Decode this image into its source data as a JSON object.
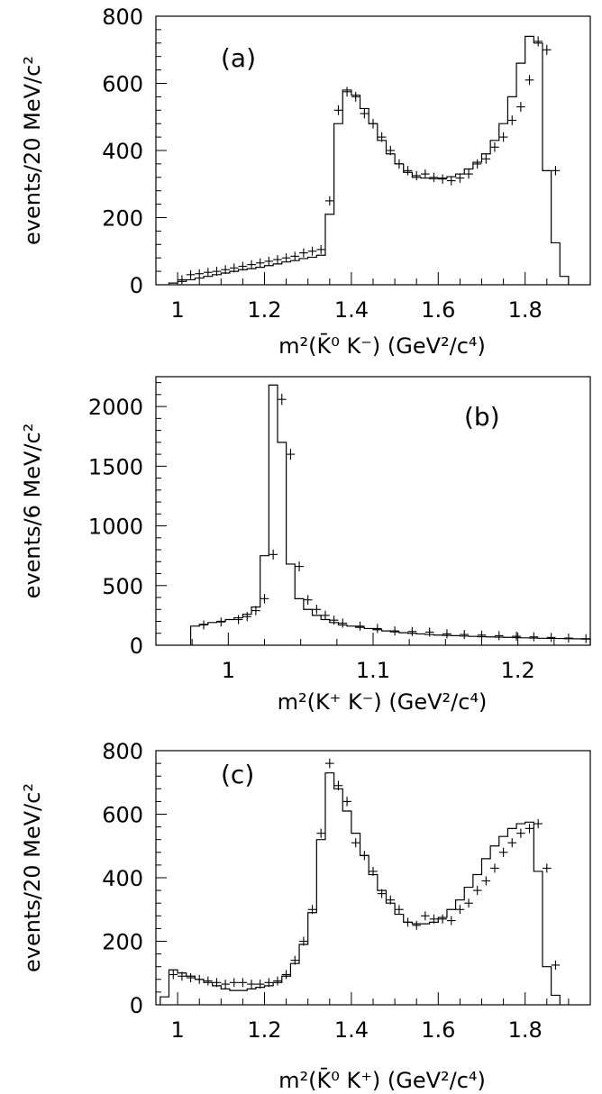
{
  "chart_data": [
    {
      "type": "histogram",
      "panel_label": "(a)",
      "ylabel": "events/20 MeV/c²",
      "xlabel": "m²(K̄⁰ K⁻) (GeV²/c⁴)",
      "xlim": [
        0.95,
        1.95
      ],
      "ylim": [
        0,
        800
      ],
      "xticks": [
        1,
        1.2,
        1.4,
        1.6,
        1.8
      ],
      "xtick_labels": [
        "1",
        "1.2",
        "1.4",
        "1.6",
        "1.8"
      ],
      "yticks": [
        0,
        200,
        400,
        600,
        800
      ],
      "ytick_labels": [
        "0",
        "200",
        "400",
        "600",
        "800"
      ],
      "bin_edges": [
        0.98,
        1.0,
        1.02,
        1.04,
        1.06,
        1.08,
        1.1,
        1.12,
        1.14,
        1.16,
        1.18,
        1.2,
        1.22,
        1.24,
        1.26,
        1.28,
        1.3,
        1.32,
        1.34,
        1.36,
        1.38,
        1.4,
        1.42,
        1.44,
        1.46,
        1.48,
        1.5,
        1.52,
        1.54,
        1.56,
        1.58,
        1.6,
        1.62,
        1.64,
        1.66,
        1.68,
        1.7,
        1.72,
        1.74,
        1.76,
        1.78,
        1.8,
        1.82,
        1.84,
        1.86,
        1.88,
        1.9
      ],
      "series": [
        {
          "kind": "model-histogram",
          "values": [
            5,
            10,
            15,
            20,
            25,
            30,
            35,
            40,
            45,
            48,
            52,
            57,
            62,
            68,
            72,
            78,
            82,
            88,
            210,
            480,
            580,
            565,
            525,
            480,
            430,
            390,
            360,
            335,
            320,
            318,
            316,
            318,
            322,
            330,
            345,
            365,
            390,
            430,
            480,
            560,
            660,
            740,
            720,
            340,
            125,
            25
          ]
        },
        {
          "kind": "data-points",
          "x": [
            1.01,
            1.03,
            1.05,
            1.07,
            1.09,
            1.11,
            1.13,
            1.15,
            1.17,
            1.19,
            1.21,
            1.23,
            1.25,
            1.27,
            1.29,
            1.31,
            1.33,
            1.35,
            1.37,
            1.39,
            1.41,
            1.43,
            1.45,
            1.47,
            1.49,
            1.51,
            1.53,
            1.55,
            1.57,
            1.59,
            1.61,
            1.63,
            1.65,
            1.67,
            1.69,
            1.71,
            1.73,
            1.75,
            1.77,
            1.79,
            1.81,
            1.83,
            1.85,
            1.87
          ],
          "y": [
            15,
            30,
            33,
            37,
            40,
            45,
            50,
            55,
            60,
            65,
            70,
            75,
            80,
            85,
            95,
            100,
            105,
            250,
            520,
            575,
            560,
            510,
            480,
            440,
            400,
            360,
            340,
            325,
            330,
            320,
            315,
            310,
            318,
            330,
            360,
            375,
            410,
            440,
            490,
            530,
            610,
            725,
            700,
            340
          ]
        }
      ]
    },
    {
      "type": "histogram",
      "panel_label": "(b)",
      "ylabel": "events/6 MeV/c²",
      "xlabel": "m²(K⁺ K⁻) (GeV²/c⁴)",
      "xlim": [
        0.95,
        1.25
      ],
      "ylim": [
        0,
        2250
      ],
      "xticks": [
        1.0,
        1.1,
        1.2
      ],
      "xtick_labels": [
        "1",
        "1.1",
        "1.2"
      ],
      "yticks": [
        0,
        500,
        1000,
        1500,
        2000
      ],
      "ytick_labels": [
        "0",
        "500",
        "1000",
        "1500",
        "2000"
      ],
      "bin_edges": [
        0.974,
        0.98,
        0.986,
        0.992,
        0.998,
        1.004,
        1.01,
        1.016,
        1.022,
        1.028,
        1.034,
        1.04,
        1.046,
        1.052,
        1.058,
        1.064,
        1.07,
        1.076,
        1.082,
        1.088,
        1.094,
        1.1,
        1.106,
        1.112,
        1.118,
        1.124,
        1.13,
        1.136,
        1.142,
        1.148,
        1.154,
        1.16,
        1.166,
        1.172,
        1.178,
        1.184,
        1.19,
        1.196,
        1.202,
        1.208,
        1.214,
        1.22,
        1.226,
        1.232,
        1.238,
        1.244,
        1.25
      ],
      "series": [
        {
          "kind": "model-histogram",
          "values": [
            160,
            175,
            190,
            200,
            215,
            230,
            260,
            320,
            750,
            2180,
            1700,
            680,
            390,
            300,
            250,
            215,
            190,
            170,
            160,
            150,
            140,
            130,
            120,
            112,
            105,
            100,
            95,
            90,
            85,
            82,
            80,
            77,
            74,
            72,
            70,
            68,
            66,
            64,
            62,
            60,
            58,
            57,
            56,
            55,
            54,
            52
          ]
        },
        {
          "kind": "data-points",
          "x": [
            0.983,
            0.995,
            1.007,
            1.013,
            1.019,
            1.025,
            1.031,
            1.037,
            1.043,
            1.049,
            1.055,
            1.061,
            1.067,
            1.073,
            1.079,
            1.091,
            1.103,
            1.115,
            1.127,
            1.139,
            1.151,
            1.163,
            1.175,
            1.187,
            1.199,
            1.211,
            1.223,
            1.235,
            1.247
          ],
          "y": [
            170,
            195,
            215,
            240,
            290,
            390,
            760,
            2060,
            1600,
            660,
            380,
            300,
            250,
            210,
            185,
            160,
            140,
            120,
            115,
            110,
            95,
            90,
            85,
            80,
            75,
            70,
            65,
            60,
            55
          ]
        }
      ]
    },
    {
      "type": "histogram",
      "panel_label": "(c)",
      "ylabel": "events/20 MeV/c²",
      "xlabel": "m²(K̄⁰ K⁺) (GeV²/c⁴)",
      "xlim": [
        0.95,
        1.95
      ],
      "ylim": [
        0,
        800
      ],
      "xticks": [
        1,
        1.2,
        1.4,
        1.6,
        1.8
      ],
      "xtick_labels": [
        "1",
        "1.2",
        "1.4",
        "1.6",
        "1.8"
      ],
      "yticks": [
        0,
        200,
        400,
        600,
        800
      ],
      "ytick_labels": [
        "0",
        "200",
        "400",
        "600",
        "800"
      ],
      "bin_edges": [
        0.96,
        0.98,
        1.0,
        1.02,
        1.04,
        1.06,
        1.08,
        1.1,
        1.12,
        1.14,
        1.16,
        1.18,
        1.2,
        1.22,
        1.24,
        1.26,
        1.28,
        1.3,
        1.32,
        1.34,
        1.36,
        1.38,
        1.4,
        1.42,
        1.44,
        1.46,
        1.48,
        1.5,
        1.52,
        1.54,
        1.56,
        1.58,
        1.6,
        1.62,
        1.64,
        1.66,
        1.68,
        1.7,
        1.72,
        1.74,
        1.76,
        1.78,
        1.8,
        1.82,
        1.84,
        1.86,
        1.88
      ],
      "series": [
        {
          "kind": "model-histogram",
          "values": [
            25,
            110,
            100,
            90,
            80,
            70,
            60,
            50,
            45,
            45,
            50,
            55,
            60,
            70,
            90,
            130,
            190,
            290,
            520,
            730,
            680,
            610,
            540,
            470,
            410,
            360,
            320,
            285,
            260,
            255,
            255,
            260,
            275,
            300,
            330,
            370,
            410,
            460,
            500,
            530,
            555,
            570,
            575,
            420,
            120,
            30
          ]
        },
        {
          "kind": "data-points",
          "x": [
            0.99,
            1.01,
            1.03,
            1.05,
            1.07,
            1.09,
            1.11,
            1.13,
            1.15,
            1.17,
            1.19,
            1.21,
            1.23,
            1.25,
            1.27,
            1.29,
            1.31,
            1.33,
            1.35,
            1.37,
            1.39,
            1.41,
            1.43,
            1.45,
            1.47,
            1.49,
            1.51,
            1.53,
            1.55,
            1.57,
            1.59,
            1.61,
            1.63,
            1.65,
            1.67,
            1.69,
            1.71,
            1.73,
            1.75,
            1.77,
            1.79,
            1.81,
            1.83,
            1.85,
            1.87
          ],
          "y": [
            95,
            90,
            85,
            80,
            75,
            70,
            65,
            70,
            70,
            65,
            65,
            70,
            75,
            95,
            140,
            200,
            300,
            540,
            760,
            690,
            640,
            510,
            470,
            420,
            350,
            330,
            300,
            260,
            250,
            280,
            270,
            270,
            265,
            300,
            320,
            360,
            390,
            430,
            480,
            510,
            540,
            555,
            570,
            430,
            125
          ]
        }
      ]
    }
  ]
}
